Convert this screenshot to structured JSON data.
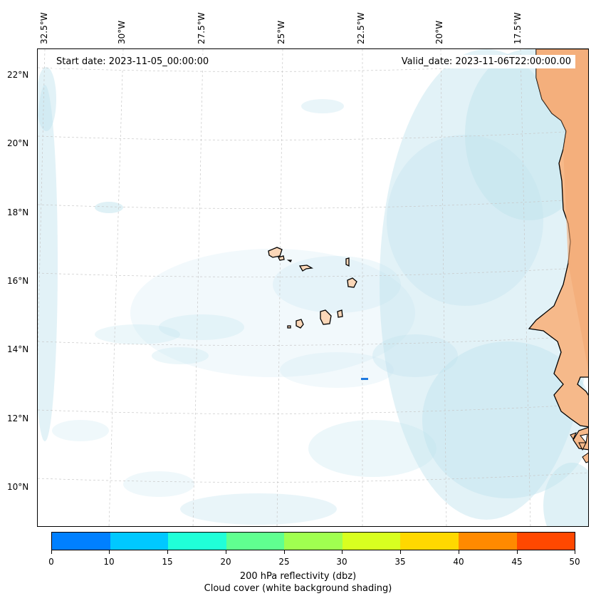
{
  "header": {
    "start_date": "Start date: 2023-11-05_00:00:00",
    "valid_date": "Valid_date: 2023-11-06T22:00:00.00"
  },
  "axes": {
    "longitude_labels": [
      "32.5°W",
      "30°W",
      "27.5°W",
      "25°W",
      "22.5°W",
      "20°W",
      "17.5°W"
    ],
    "latitude_labels": [
      "22°N",
      "20°N",
      "18°N",
      "16°N",
      "14°N",
      "12°N",
      "10°N"
    ]
  },
  "colorbar": {
    "ticks": [
      "0",
      "10",
      "15",
      "20",
      "25",
      "30",
      "35",
      "40",
      "45",
      "50"
    ],
    "colors": [
      "#0080ff",
      "#00c8ff",
      "#20ffd8",
      "#60ff90",
      "#a0ff50",
      "#d8ff20",
      "#ffd800",
      "#ff8a00",
      "#ff4800"
    ],
    "label_line1": "200 hPa reflectivity (dbz)",
    "label_line2": "Cloud cover (white background shading)"
  },
  "map": {
    "region": "Cabo Verde / West Africa coast",
    "land_color": "#fbd7b8",
    "cloud_color": "#bfe3ee",
    "reflectivity_cell_color": "#1f7ae0"
  }
}
